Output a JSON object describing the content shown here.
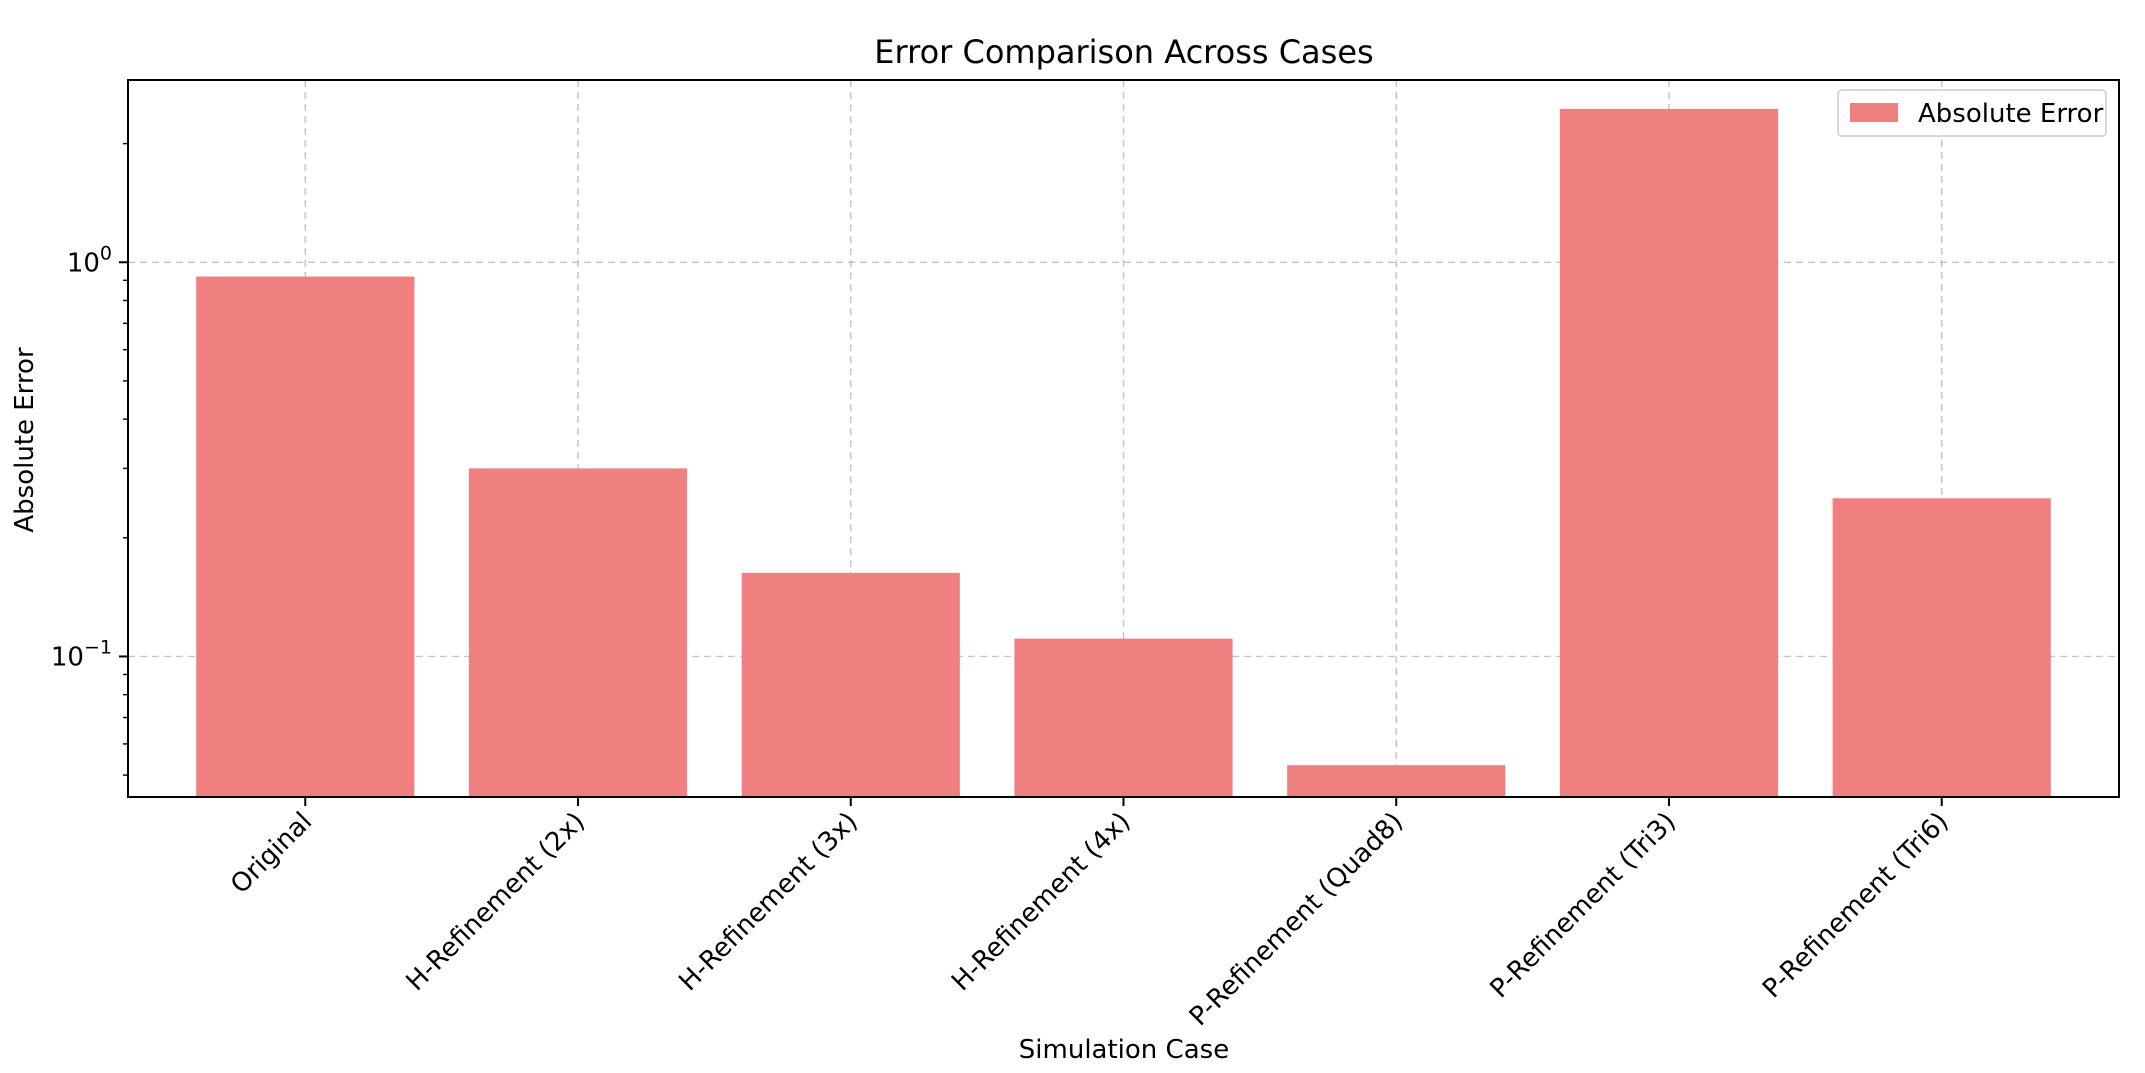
{
  "chart_data": {
    "type": "bar",
    "title": "Error Comparison Across Cases",
    "xlabel": "Simulation Case",
    "ylabel": "Absolute Error",
    "yscale": "log",
    "ylim": [
      0.044,
      2.9
    ],
    "grid": true,
    "legend_position": "top-right",
    "bar_color": "#f08080",
    "categories": [
      "Original",
      "H-Refinement (2x)",
      "H-Refinement (3x)",
      "H-Refinement (4x)",
      "P-Refinement (Quad8)",
      "P-Refinement (Tri3)",
      "P-Refinement (Tri6)"
    ],
    "series": [
      {
        "name": "Absolute Error",
        "values": [
          0.92,
          0.3,
          0.163,
          0.111,
          0.053,
          2.45,
          0.252
        ]
      }
    ],
    "y_ticks": [
      {
        "value": 1,
        "base": "10",
        "exp": "0"
      },
      {
        "value": 0.1,
        "base": "10",
        "exp": "−1"
      }
    ]
  }
}
